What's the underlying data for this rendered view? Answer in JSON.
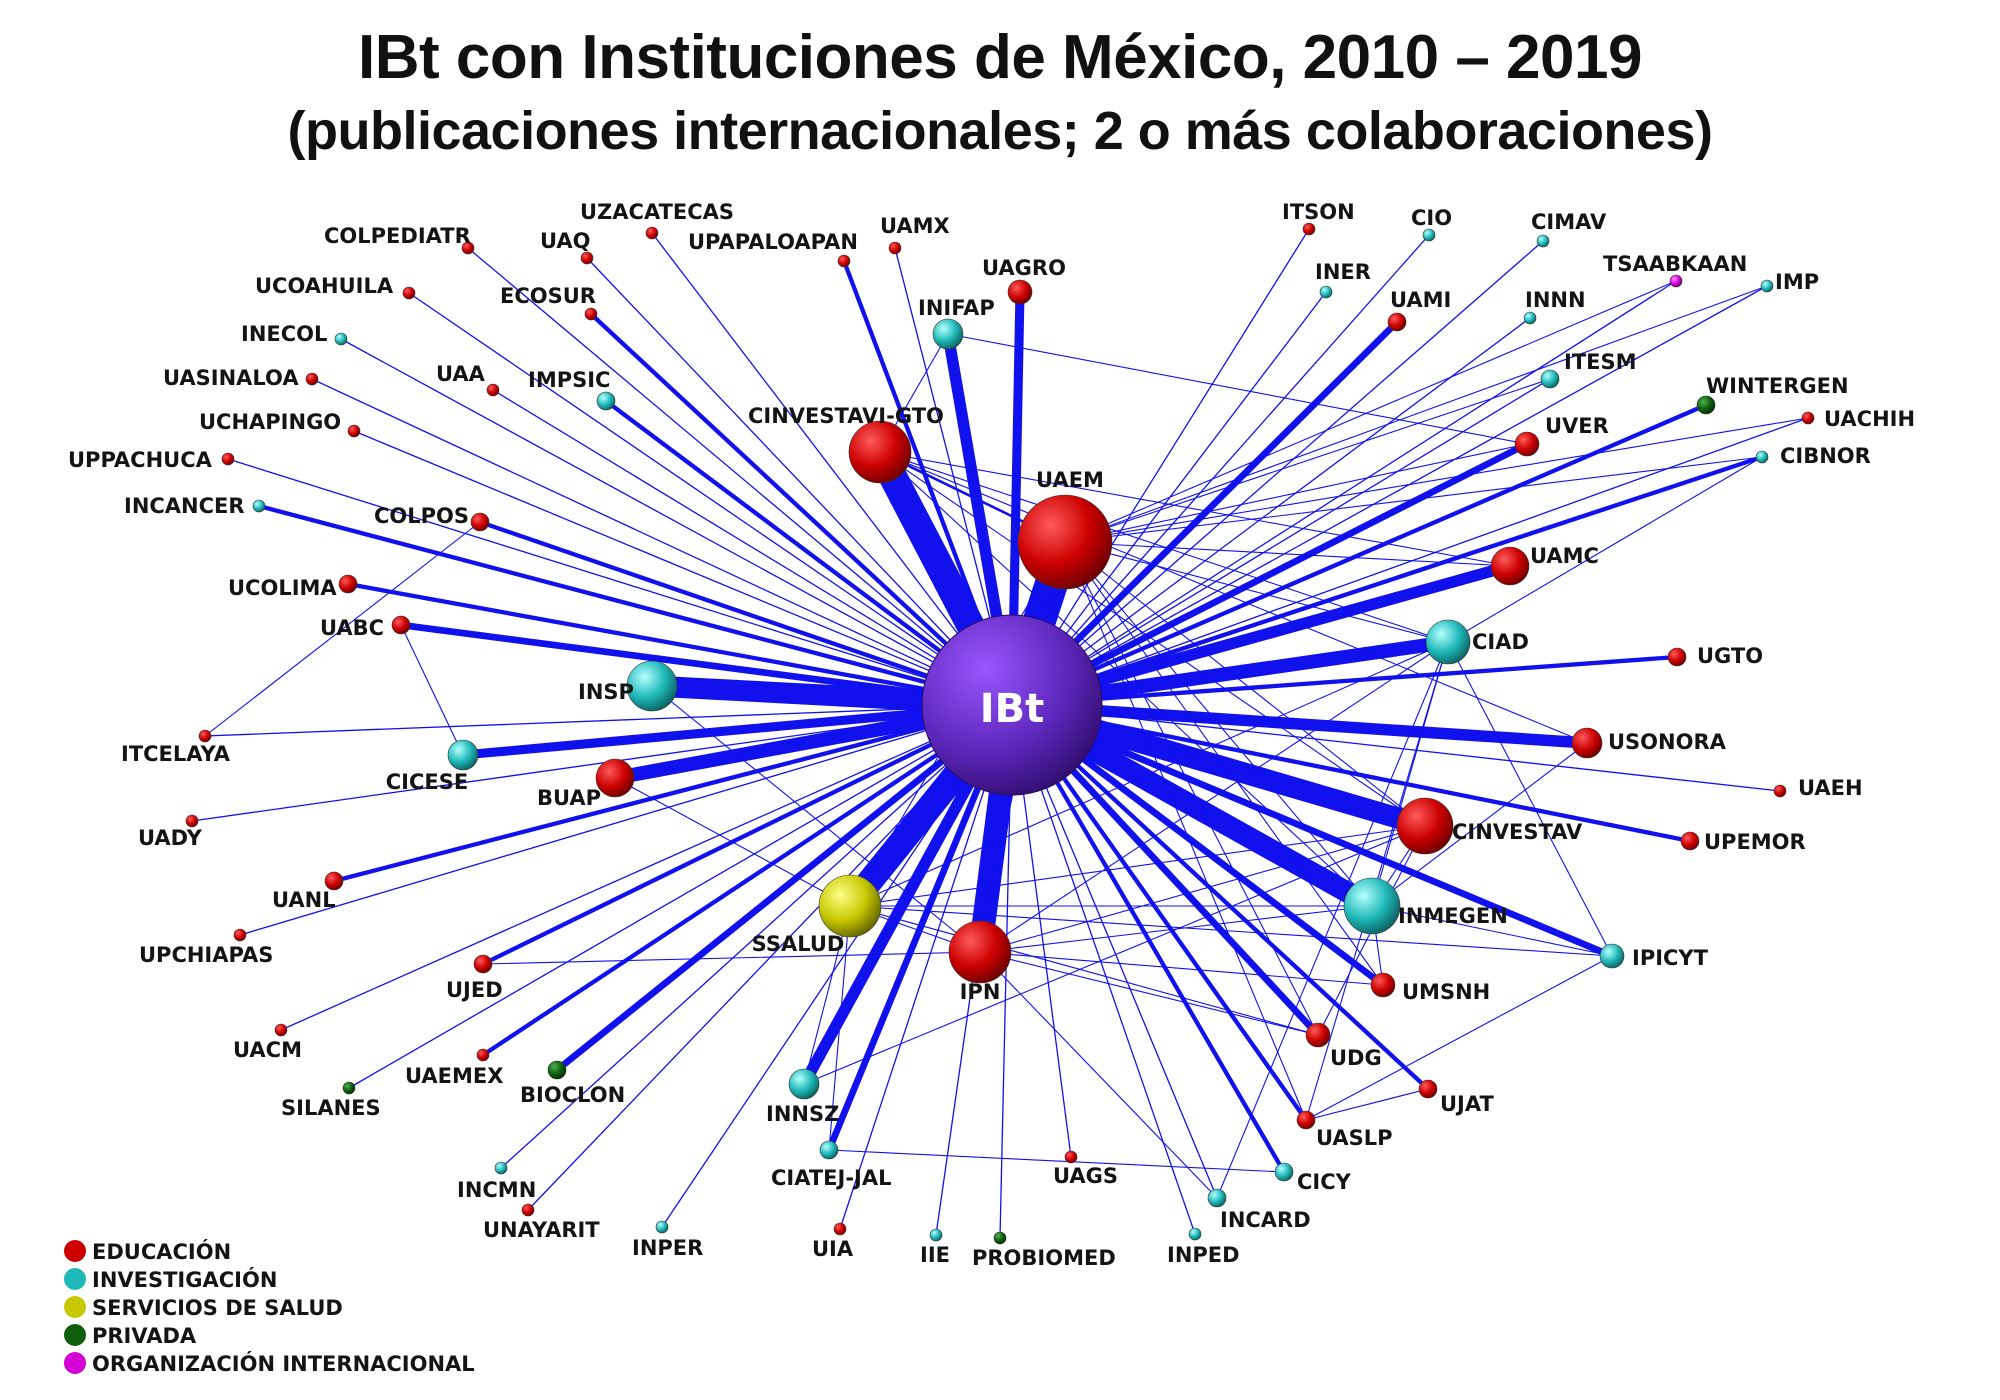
{
  "title": "IBt con Instituciones de México, 2010 – 2019",
  "subtitle": "(publicaciones internacionales; 2 o más colaboraciones)",
  "center": {
    "id": "IBt",
    "label": "IBt"
  },
  "colors": {
    "EDUCACION": "#cc0000",
    "INVESTIGACION": "#1fb8b8",
    "SERVICIOS": "#c8c800",
    "PRIVADA": "#0d5e0d",
    "INTERNACIONAL": "#d400d4",
    "edge": "#1111ee",
    "center": "#6a2cc8"
  },
  "legend": [
    {
      "cat": "EDUCACION",
      "label": "EDUCACIÓN"
    },
    {
      "cat": "INVESTIGACION",
      "label": "INVESTIGACIÓN"
    },
    {
      "cat": "SERVICIOS",
      "label": "SERVICIOS DE SALUD"
    },
    {
      "cat": "PRIVADA",
      "label": "PRIVADA"
    },
    {
      "cat": "INTERNACIONAL",
      "label": "ORGANIZACIÓN INTERNACIONAL"
    }
  ],
  "nodes": [
    {
      "id": "UAEM",
      "label": "UAEM",
      "cat": "EDUCACION",
      "w": 14
    },
    {
      "id": "CINVESTAVI-GTO",
      "label": "CINVESTAVI-GTO",
      "cat": "EDUCACION",
      "w": 9
    },
    {
      "id": "IPN",
      "label": "IPN",
      "cat": "EDUCACION",
      "w": 9
    },
    {
      "id": "CINVESTAV",
      "label": "CINVESTAV",
      "cat": "EDUCACION",
      "w": 8
    },
    {
      "id": "INMEGEN",
      "label": "INMEGEN",
      "cat": "INVESTIGACION",
      "w": 8
    },
    {
      "id": "SSALUD",
      "label": "SSALUD",
      "cat": "SERVICIOS",
      "w": 9
    },
    {
      "id": "INSP",
      "label": "INSP",
      "cat": "INVESTIGACION",
      "w": 7
    },
    {
      "id": "BUAP",
      "label": "BUAP",
      "cat": "EDUCACION",
      "w": 5
    },
    {
      "id": "CIAD",
      "label": "CIAD",
      "cat": "INVESTIGACION",
      "w": 6
    },
    {
      "id": "UAMC",
      "label": "UAMC",
      "cat": "EDUCACION",
      "w": 5
    },
    {
      "id": "USONORA",
      "label": "USONORA",
      "cat": "EDUCACION",
      "w": 4
    },
    {
      "id": "INIFAP",
      "label": "INIFAP",
      "cat": "INVESTIGACION",
      "w": 4
    },
    {
      "id": "UAGRO",
      "label": "UAGRO",
      "cat": "EDUCACION",
      "w": 3
    },
    {
      "id": "INNSZ",
      "label": "INNSZ",
      "cat": "INVESTIGACION",
      "w": 4
    },
    {
      "id": "CICESE",
      "label": "CICESE",
      "cat": "INVESTIGACION",
      "w": 4
    },
    {
      "id": "UMSNH",
      "label": "UMSNH",
      "cat": "EDUCACION",
      "w": 3
    },
    {
      "id": "UDG",
      "label": "UDG",
      "cat": "EDUCACION",
      "w": 3
    },
    {
      "id": "IPICYT",
      "label": "IPICYT",
      "cat": "INVESTIGACION",
      "w": 3
    },
    {
      "id": "UVER",
      "label": "UVER",
      "cat": "EDUCACION",
      "w": 3
    },
    {
      "id": "ITESM",
      "label": "ITESM",
      "cat": "INVESTIGACION",
      "w": 2
    },
    {
      "id": "UAMI",
      "label": "UAMI",
      "cat": "EDUCACION",
      "w": 2
    },
    {
      "id": "IMPSIC",
      "label": "IMPSIC",
      "cat": "INVESTIGACION",
      "w": 2
    },
    {
      "id": "COLPOS",
      "label": "COLPOS",
      "cat": "EDUCACION",
      "w": 2
    },
    {
      "id": "UABC",
      "label": "UABC",
      "cat": "EDUCACION",
      "w": 2
    },
    {
      "id": "UCOLIMA",
      "label": "UCOLIMA",
      "cat": "EDUCACION",
      "w": 2
    },
    {
      "id": "UGTO",
      "label": "UGTO",
      "cat": "EDUCACION",
      "w": 2
    },
    {
      "id": "UPEMOR",
      "label": "UPEMOR",
      "cat": "EDUCACION",
      "w": 2
    },
    {
      "id": "UJED",
      "label": "UJED",
      "cat": "EDUCACION",
      "w": 2
    },
    {
      "id": "UANL",
      "label": "UANL",
      "cat": "EDUCACION",
      "w": 2
    },
    {
      "id": "BIOCLON",
      "label": "BIOCLON",
      "cat": "PRIVADA",
      "w": 2
    },
    {
      "id": "CIATEJ-JAL",
      "label": "CIATEJ-JAL",
      "cat": "INVESTIGACION",
      "w": 2
    },
    {
      "id": "UJAT",
      "label": "UJAT",
      "cat": "EDUCACION",
      "w": 2
    },
    {
      "id": "UASLP",
      "label": "UASLP",
      "cat": "EDUCACION",
      "w": 2
    },
    {
      "id": "CICY",
      "label": "CICY",
      "cat": "INVESTIGACION",
      "w": 2
    },
    {
      "id": "INCARD",
      "label": "INCARD",
      "cat": "INVESTIGACION",
      "w": 2
    },
    {
      "id": "WINTERGEN",
      "label": "WINTERGEN",
      "cat": "PRIVADA",
      "w": 2
    },
    {
      "id": "CIBNOR",
      "label": "CIBNOR",
      "cat": "INVESTIGACION",
      "w": 1
    },
    {
      "id": "UAGS",
      "label": "UAGS",
      "cat": "EDUCACION",
      "w": 1
    },
    {
      "id": "UAEMEX",
      "label": "UAEMEX",
      "cat": "EDUCACION",
      "w": 1
    },
    {
      "id": "UACM",
      "label": "UACM",
      "cat": "EDUCACION",
      "w": 1
    },
    {
      "id": "UCHAPINGO",
      "label": "UCHAPINGO",
      "cat": "EDUCACION",
      "w": 1
    },
    {
      "id": "UAA",
      "label": "UAA",
      "cat": "EDUCACION",
      "w": 1
    },
    {
      "id": "ECOSUR",
      "label": "ECOSUR",
      "cat": "EDUCACION",
      "w": 1
    },
    {
      "id": "UAQ",
      "label": "UAQ",
      "cat": "EDUCACION",
      "w": 1
    },
    {
      "id": "UAMX",
      "label": "UAMX",
      "cat": "EDUCACION",
      "w": 1
    },
    {
      "id": "UPAPALOAPAN",
      "label": "UPAPALOAPAN",
      "cat": "EDUCACION",
      "w": 1
    },
    {
      "id": "UZACATECAS",
      "label": "UZACATECAS",
      "cat": "EDUCACION",
      "w": 1
    },
    {
      "id": "COLPEDIATR",
      "label": "COLPEDIATR",
      "cat": "EDUCACION",
      "w": 1
    },
    {
      "id": "UCOAHUILA",
      "label": "UCOAHUILA",
      "cat": "EDUCACION",
      "w": 1
    },
    {
      "id": "INECOL",
      "label": "INECOL",
      "cat": "INVESTIGACION",
      "w": 1
    },
    {
      "id": "UASINALOA",
      "label": "UASINALOA",
      "cat": "EDUCACION",
      "w": 1
    },
    {
      "id": "UPPACHUCA",
      "label": "UPPACHUCA",
      "cat": "EDUCACION",
      "w": 1
    },
    {
      "id": "INCANCER",
      "label": "INCANCER",
      "cat": "INVESTIGACION",
      "w": 1
    },
    {
      "id": "ITCELAYA",
      "label": "ITCELAYA",
      "cat": "EDUCACION",
      "w": 1
    },
    {
      "id": "UADY",
      "label": "UADY",
      "cat": "EDUCACION",
      "w": 1
    },
    {
      "id": "UPCHIAPAS",
      "label": "UPCHIAPAS",
      "cat": "EDUCACION",
      "w": 1
    },
    {
      "id": "SILANES",
      "label": "SILANES",
      "cat": "PRIVADA",
      "w": 1
    },
    {
      "id": "INCMN",
      "label": "INCMN",
      "cat": "INVESTIGACION",
      "w": 1
    },
    {
      "id": "UNAYARIT",
      "label": "UNAYARIT",
      "cat": "EDUCACION",
      "w": 1
    },
    {
      "id": "INPER",
      "label": "INPER",
      "cat": "INVESTIGACION",
      "w": 1
    },
    {
      "id": "UIA",
      "label": "UIA",
      "cat": "EDUCACION",
      "w": 1
    },
    {
      "id": "IIE",
      "label": "IIE",
      "cat": "INVESTIGACION",
      "w": 1
    },
    {
      "id": "PROBIOMED",
      "label": "PROBIOMED",
      "cat": "PRIVADA",
      "w": 1
    },
    {
      "id": "INPED",
      "label": "INPED",
      "cat": "INVESTIGACION",
      "w": 1
    },
    {
      "id": "ITSON",
      "label": "ITSON",
      "cat": "EDUCACION",
      "w": 1
    },
    {
      "id": "CIO",
      "label": "CIO",
      "cat": "INVESTIGACION",
      "w": 1
    },
    {
      "id": "CIMAV",
      "label": "CIMAV",
      "cat": "INVESTIGACION",
      "w": 1
    },
    {
      "id": "INER",
      "label": "INER",
      "cat": "INVESTIGACION",
      "w": 1
    },
    {
      "id": "INNN",
      "label": "INNN",
      "cat": "INVESTIGACION",
      "w": 1
    },
    {
      "id": "TSAABKAAN",
      "label": "TSAABKAAN",
      "cat": "INTERNACIONAL",
      "w": 1
    },
    {
      "id": "IMP",
      "label": "IMP",
      "cat": "INVESTIGACION",
      "w": 1
    },
    {
      "id": "UACHIH",
      "label": "UACHIH",
      "cat": "EDUCACION",
      "w": 1
    },
    {
      "id": "UAEH",
      "label": "UAEH",
      "cat": "EDUCACION",
      "w": 1
    }
  ],
  "edges": [
    [
      "IBt",
      "UAEM",
      14
    ],
    [
      "IBt",
      "CINVESTAVI-GTO",
      12
    ],
    [
      "IBt",
      "SSALUD",
      11
    ],
    [
      "IBt",
      "IPN",
      10
    ],
    [
      "IBt",
      "CINVESTAV",
      9
    ],
    [
      "IBt",
      "INMEGEN",
      9
    ],
    [
      "IBt",
      "INSP",
      9
    ],
    [
      "IBt",
      "BUAP",
      6
    ],
    [
      "IBt",
      "CIAD",
      6
    ],
    [
      "IBt",
      "UAMC",
      5
    ],
    [
      "IBt",
      "INIFAP",
      5
    ],
    [
      "IBt",
      "INNSZ",
      5
    ],
    [
      "IBt",
      "USONORA",
      5
    ],
    [
      "IBt",
      "UAGRO",
      4
    ],
    [
      "IBt",
      "CICESE",
      4
    ],
    [
      "IBt",
      "UMSNH",
      3
    ],
    [
      "IBt",
      "UDG",
      3
    ],
    [
      "IBt",
      "IPICYT",
      3
    ],
    [
      "IBt",
      "UVER",
      3
    ],
    [
      "IBt",
      "UAMI",
      3
    ],
    [
      "IBt",
      "CIATEJ-JAL",
      3
    ],
    [
      "IBt",
      "BIOCLON",
      3
    ],
    [
      "IBt",
      "IMPSIC",
      2
    ],
    [
      "IBt",
      "COLPOS",
      2
    ],
    [
      "IBt",
      "UABC",
      3
    ],
    [
      "IBt",
      "UCOLIMA",
      2
    ],
    [
      "IBt",
      "UGTO",
      2
    ],
    [
      "IBt",
      "UPEMOR",
      2
    ],
    [
      "IBt",
      "UJED",
      2
    ],
    [
      "IBt",
      "UANL",
      2
    ],
    [
      "IBt",
      "UJAT",
      2
    ],
    [
      "IBt",
      "UASLP",
      2
    ],
    [
      "IBt",
      "CICY",
      2
    ],
    [
      "IBt",
      "WINTERGEN",
      2
    ],
    [
      "IBt",
      "CIBNOR",
      2
    ],
    [
      "IBt",
      "UAGS",
      1
    ],
    [
      "IBt",
      "UAEMEX",
      2
    ],
    [
      "IBt",
      "UACM",
      1
    ],
    [
      "IBt",
      "UCHAPINGO",
      1
    ],
    [
      "IBt",
      "UAA",
      1
    ],
    [
      "IBt",
      "ECOSUR",
      2
    ],
    [
      "IBt",
      "UAQ",
      1
    ],
    [
      "IBt",
      "UAMX",
      1
    ],
    [
      "IBt",
      "UPAPALOAPAN",
      2
    ],
    [
      "IBt",
      "UZACATECAS",
      1
    ],
    [
      "IBt",
      "COLPEDIATR",
      1
    ],
    [
      "IBt",
      "UCOAHUILA",
      1
    ],
    [
      "IBt",
      "INECOL",
      1
    ],
    [
      "IBt",
      "UASINALOA",
      1
    ],
    [
      "IBt",
      "UPPACHUCA",
      1
    ],
    [
      "IBt",
      "INCANCER",
      2
    ],
    [
      "IBt",
      "ITCELAYA",
      1
    ],
    [
      "IBt",
      "UADY",
      1
    ],
    [
      "IBt",
      "UPCHIAPAS",
      1
    ],
    [
      "IBt",
      "SILANES",
      1
    ],
    [
      "IBt",
      "INCMN",
      1
    ],
    [
      "IBt",
      "UNAYARIT",
      1
    ],
    [
      "IBt",
      "INPER",
      1
    ],
    [
      "IBt",
      "UIA",
      1
    ],
    [
      "IBt",
      "IIE",
      1
    ],
    [
      "IBt",
      "PROBIOMED",
      1
    ],
    [
      "IBt",
      "INPED",
      1
    ],
    [
      "IBt",
      "ITSON",
      1
    ],
    [
      "IBt",
      "CIO",
      1
    ],
    [
      "IBt",
      "CIMAV",
      1
    ],
    [
      "IBt",
      "INER",
      1
    ],
    [
      "IBt",
      "INNN",
      1
    ],
    [
      "IBt",
      "TSAABKAAN",
      1
    ],
    [
      "IBt",
      "IMP",
      1
    ],
    [
      "IBt",
      "UACHIH",
      1
    ],
    [
      "IBt",
      "UAEH",
      1
    ],
    [
      "IBt",
      "INCARD",
      1
    ],
    [
      "IBt",
      "ITESM",
      1
    ],
    [
      "UAEM",
      "CINVESTAVI-GTO",
      2
    ],
    [
      "UAEM",
      "CINVESTAV",
      1
    ],
    [
      "UAEM",
      "INMEGEN",
      1
    ],
    [
      "UAEM",
      "IPN",
      1
    ],
    [
      "UAEM",
      "SSALUD",
      1
    ],
    [
      "UAEM",
      "UAMC",
      1
    ],
    [
      "UAEM",
      "CIAD",
      1
    ],
    [
      "UAEM",
      "UDG",
      1
    ],
    [
      "UAEM",
      "UMSNH",
      1
    ],
    [
      "UAEM",
      "ITESM",
      1
    ],
    [
      "UAEM",
      "TSAABKAAN",
      1
    ],
    [
      "UAEM",
      "UACHIH",
      1
    ],
    [
      "UAEM",
      "IMP",
      1
    ],
    [
      "UAEM",
      "UASLP",
      1
    ],
    [
      "UAEM",
      "UVER",
      1
    ],
    [
      "UAEM",
      "CIBNOR",
      1
    ],
    [
      "CINVESTAVI-GTO",
      "CINVESTAV",
      1
    ],
    [
      "CINVESTAVI-GTO",
      "INMEGEN",
      1
    ],
    [
      "CINVESTAVI-GTO",
      "UAMC",
      1
    ],
    [
      "CINVESTAVI-GTO",
      "CIAD",
      1
    ],
    [
      "CINVESTAVI-GTO",
      "USONORA",
      1
    ],
    [
      "CINVESTAVI-GTO",
      "INIFAP",
      1
    ],
    [
      "INIFAP",
      "UVER",
      1
    ],
    [
      "UABC",
      "CICESE",
      1
    ],
    [
      "ITCELAYA",
      "COLPOS",
      1
    ],
    [
      "SSALUD",
      "CINVESTAV",
      1
    ],
    [
      "SSALUD",
      "INMEGEN",
      1
    ],
    [
      "SSALUD",
      "INNSZ",
      1
    ],
    [
      "SSALUD",
      "IPN",
      1
    ],
    [
      "SSALUD",
      "CIATEJ-JAL",
      1
    ],
    [
      "SSALUD",
      "CIAD",
      1
    ],
    [
      "SSALUD",
      "IPICYT",
      1
    ],
    [
      "SSALUD",
      "UDG",
      1
    ],
    [
      "IPN",
      "CINVESTAV",
      1
    ],
    [
      "IPN",
      "INMEGEN",
      1
    ],
    [
      "IPN",
      "UDG",
      1
    ],
    [
      "IPN",
      "UJED",
      1
    ],
    [
      "IPN",
      "UMSNH",
      1
    ],
    [
      "IPN",
      "CIAD",
      1
    ],
    [
      "IPN",
      "INCARD",
      1
    ],
    [
      "BUAP",
      "SSALUD",
      1
    ],
    [
      "INSP",
      "IPN",
      1
    ],
    [
      "CINVESTAV",
      "INMEGEN",
      1
    ],
    [
      "CINVESTAV",
      "UDG",
      1
    ],
    [
      "CINVESTAV",
      "INNSZ",
      1
    ],
    [
      "CIAD",
      "INMEGEN",
      1
    ],
    [
      "CIAD",
      "IPICYT",
      1
    ],
    [
      "CIAD",
      "UASLP",
      1
    ],
    [
      "CIAD",
      "CIBNOR",
      1
    ],
    [
      "CIAD",
      "INCARD",
      1
    ],
    [
      "USONORA",
      "INMEGEN",
      1
    ],
    [
      "IPICYT",
      "UASLP",
      1
    ],
    [
      "IPICYT",
      "INMEGEN",
      1
    ],
    [
      "CIATEJ-JAL",
      "CICY",
      1
    ],
    [
      "INMEGEN",
      "UMSNH",
      1
    ],
    [
      "UASLP",
      "UJAT",
      1
    ]
  ]
}
